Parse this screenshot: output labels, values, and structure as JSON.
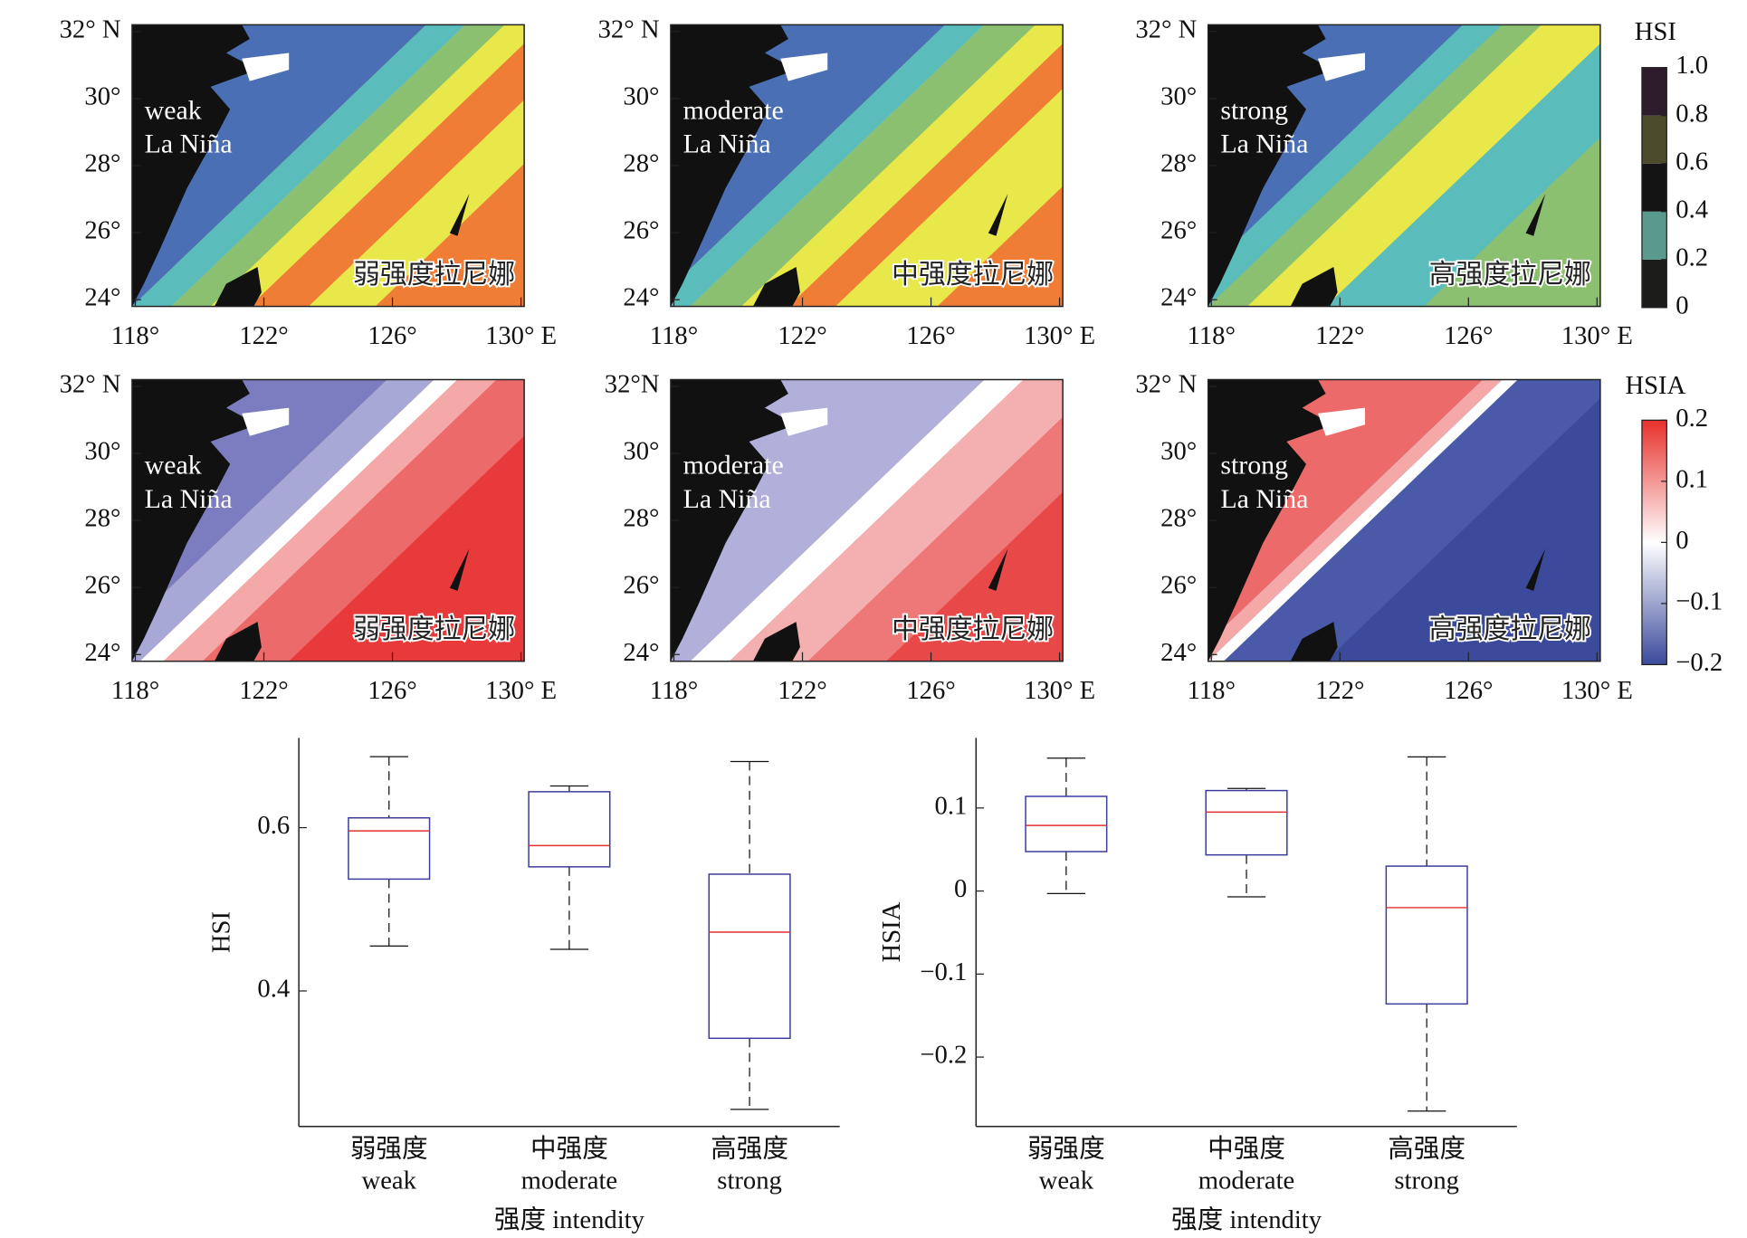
{
  "maps": [
    {
      "label": [
        "weak",
        "La Niña"
      ],
      "label_cn": "弱强度拉尼娜",
      "xlim": [
        117.9,
        130.1
      ],
      "ylim": [
        23.8,
        32.2
      ],
      "xticks": [
        {
          "value": 118,
          "label": "118°"
        },
        {
          "value": 122,
          "label": "122°"
        },
        {
          "value": 126,
          "label": "126°"
        },
        {
          "value": 130,
          "label": "130° E"
        }
      ],
      "yticks": [
        {
          "value": 24,
          "label": "24°"
        },
        {
          "value": 26,
          "label": "26°"
        },
        {
          "value": 28,
          "label": "28°"
        },
        {
          "value": 30,
          "label": "30°"
        },
        {
          "value": 32,
          "label": "32° N"
        }
      ]
    },
    {
      "label": [
        "moderate",
        "La Niña"
      ],
      "label_cn": "中强度拉尼娜",
      "xlim": [
        117.9,
        130.1
      ],
      "ylim": [
        23.8,
        32.2
      ],
      "xticks": [
        {
          "value": 118,
          "label": "118°"
        },
        {
          "value": 122,
          "label": "122°"
        },
        {
          "value": 126,
          "label": "126°"
        },
        {
          "value": 130,
          "label": "130° E"
        }
      ],
      "yticks": [
        {
          "value": 24,
          "label": "24°"
        },
        {
          "value": 26,
          "label": "26°"
        },
        {
          "value": 28,
          "label": "28°"
        },
        {
          "value": 30,
          "label": "30°"
        },
        {
          "value": 32,
          "label": "32° N"
        }
      ]
    },
    {
      "label": [
        "strong",
        "La Niña"
      ],
      "label_cn": "高强度拉尼娜",
      "xlim": [
        117.9,
        130.1
      ],
      "ylim": [
        23.8,
        32.2
      ],
      "xticks": [
        {
          "value": 118,
          "label": "118°"
        },
        {
          "value": 122,
          "label": "122°"
        },
        {
          "value": 126,
          "label": "126°"
        },
        {
          "value": 130,
          "label": "130° E"
        }
      ],
      "yticks": [
        {
          "value": 24,
          "label": "24°"
        },
        {
          "value": 26,
          "label": "26°"
        },
        {
          "value": 28,
          "label": "28°"
        },
        {
          "value": 30,
          "label": "30°"
        },
        {
          "value": 32,
          "label": "32° N"
        }
      ]
    },
    {
      "label": [
        "weak",
        "La Niña"
      ],
      "label_cn": "弱强度拉尼娜",
      "xlim": [
        117.9,
        130.1
      ],
      "ylim": [
        23.8,
        32.2
      ],
      "xticks": [
        {
          "value": 118,
          "label": "118°"
        },
        {
          "value": 122,
          "label": "122°"
        },
        {
          "value": 126,
          "label": "126°"
        },
        {
          "value": 130,
          "label": "130° E"
        }
      ],
      "yticks": [
        {
          "value": 24,
          "label": "24°"
        },
        {
          "value": 26,
          "label": "26°"
        },
        {
          "value": 28,
          "label": "28°"
        },
        {
          "value": 30,
          "label": "30°"
        },
        {
          "value": 32,
          "label": "32° N"
        }
      ]
    },
    {
      "label": [
        "moderate",
        "La Niña"
      ],
      "label_cn": "中强度拉尼娜",
      "xlim": [
        117.9,
        130.1
      ],
      "ylim": [
        23.8,
        32.2
      ],
      "xticks": [
        {
          "value": 118,
          "label": "118°"
        },
        {
          "value": 122,
          "label": "122°"
        },
        {
          "value": 126,
          "label": "126°"
        },
        {
          "value": 130,
          "label": "130° E"
        }
      ],
      "yticks": [
        {
          "value": 24,
          "label": "24°"
        },
        {
          "value": 26,
          "label": "26°"
        },
        {
          "value": 28,
          "label": "28°"
        },
        {
          "value": 30,
          "label": "30°"
        },
        {
          "value": 32,
          "label": "32°N"
        }
      ]
    },
    {
      "label": [
        "strong",
        "La Niña"
      ],
      "label_cn": "高强度拉尼娜",
      "xlim": [
        117.9,
        130.1
      ],
      "ylim": [
        23.8,
        32.2
      ],
      "xticks": [
        {
          "value": 118,
          "label": "118°"
        },
        {
          "value": 122,
          "label": "122°"
        },
        {
          "value": 126,
          "label": "126°"
        },
        {
          "value": 130,
          "label": "130° E"
        }
      ],
      "yticks": [
        {
          "value": 24,
          "label": "24°"
        },
        {
          "value": 26,
          "label": "26°"
        },
        {
          "value": 28,
          "label": "28°"
        },
        {
          "value": 30,
          "label": "30°"
        },
        {
          "value": 32,
          "label": "32° N"
        }
      ]
    }
  ],
  "colorbars": [
    {
      "title": "HSI",
      "style": "discrete",
      "lim": [
        0,
        1
      ],
      "colors": [
        "#1c1c1a",
        "#5a9a8c",
        "#141414",
        "#4c4c2c",
        "#2c1c2c"
      ],
      "ticks": [
        0,
        0.2,
        0.4,
        0.6,
        0.8,
        {
          "value": 1,
          "label": "1.0"
        }
      ]
    },
    {
      "title": "HSIA",
      "style": "continuous",
      "lim": [
        -0.2,
        0.2
      ],
      "colors": [
        "#3a4a9c",
        "#ffffff",
        "#e8302a"
      ],
      "ticks": [
        {
          "value": -0.2,
          "label": "−0.2"
        },
        {
          "value": -0.1,
          "label": "−0.1"
        },
        0,
        0.1,
        0.2
      ]
    }
  ],
  "chart_data": [
    {
      "type": "box",
      "ylabel": "HSI",
      "xlabel": "强度 intendity",
      "categories": [
        "弱强度",
        "中强度",
        "高强度"
      ],
      "categories_en": [
        "weak",
        "moderate",
        "strong"
      ],
      "ylim": [
        0.234,
        0.71
      ],
      "yticks": [
        0.4,
        0.6
      ],
      "box_color": "#3c3c9c",
      "median_color": "#e03030",
      "boxes": [
        {
          "low": 0.455,
          "q1": 0.537,
          "median": 0.596,
          "q3": 0.612,
          "high": 0.687
        },
        {
          "low": 0.451,
          "q1": 0.552,
          "median": 0.578,
          "q3": 0.644,
          "high": 0.651
        },
        {
          "low": 0.255,
          "q1": 0.342,
          "median": 0.472,
          "q3": 0.543,
          "high": 0.681
        }
      ]
    },
    {
      "type": "box",
      "ylabel": "HSIA",
      "xlabel": "强度 intendity",
      "categories": [
        "弱强度",
        "中强度",
        "高强度"
      ],
      "categories_en": [
        "weak",
        "moderate",
        "strong"
      ],
      "ylim": [
        -0.2836,
        0.1845
      ],
      "yticks": [
        {
          "value": -0.2,
          "label": "−0.2"
        },
        {
          "value": -0.1,
          "label": "−0.1"
        },
        0,
        0.1
      ],
      "box_color": "#3c3c9c",
      "median_color": "#e03030",
      "boxes": [
        {
          "low": -0.003,
          "q1": 0.0475,
          "median": 0.079,
          "q3": 0.114,
          "high": 0.16
        },
        {
          "low": -0.007,
          "q1": 0.0435,
          "median": 0.095,
          "q3": 0.121,
          "high": 0.1235
        },
        {
          "low": -0.265,
          "q1": -0.136,
          "median": -0.02,
          "q3": 0.03,
          "high": 0.1615
        }
      ]
    }
  ]
}
